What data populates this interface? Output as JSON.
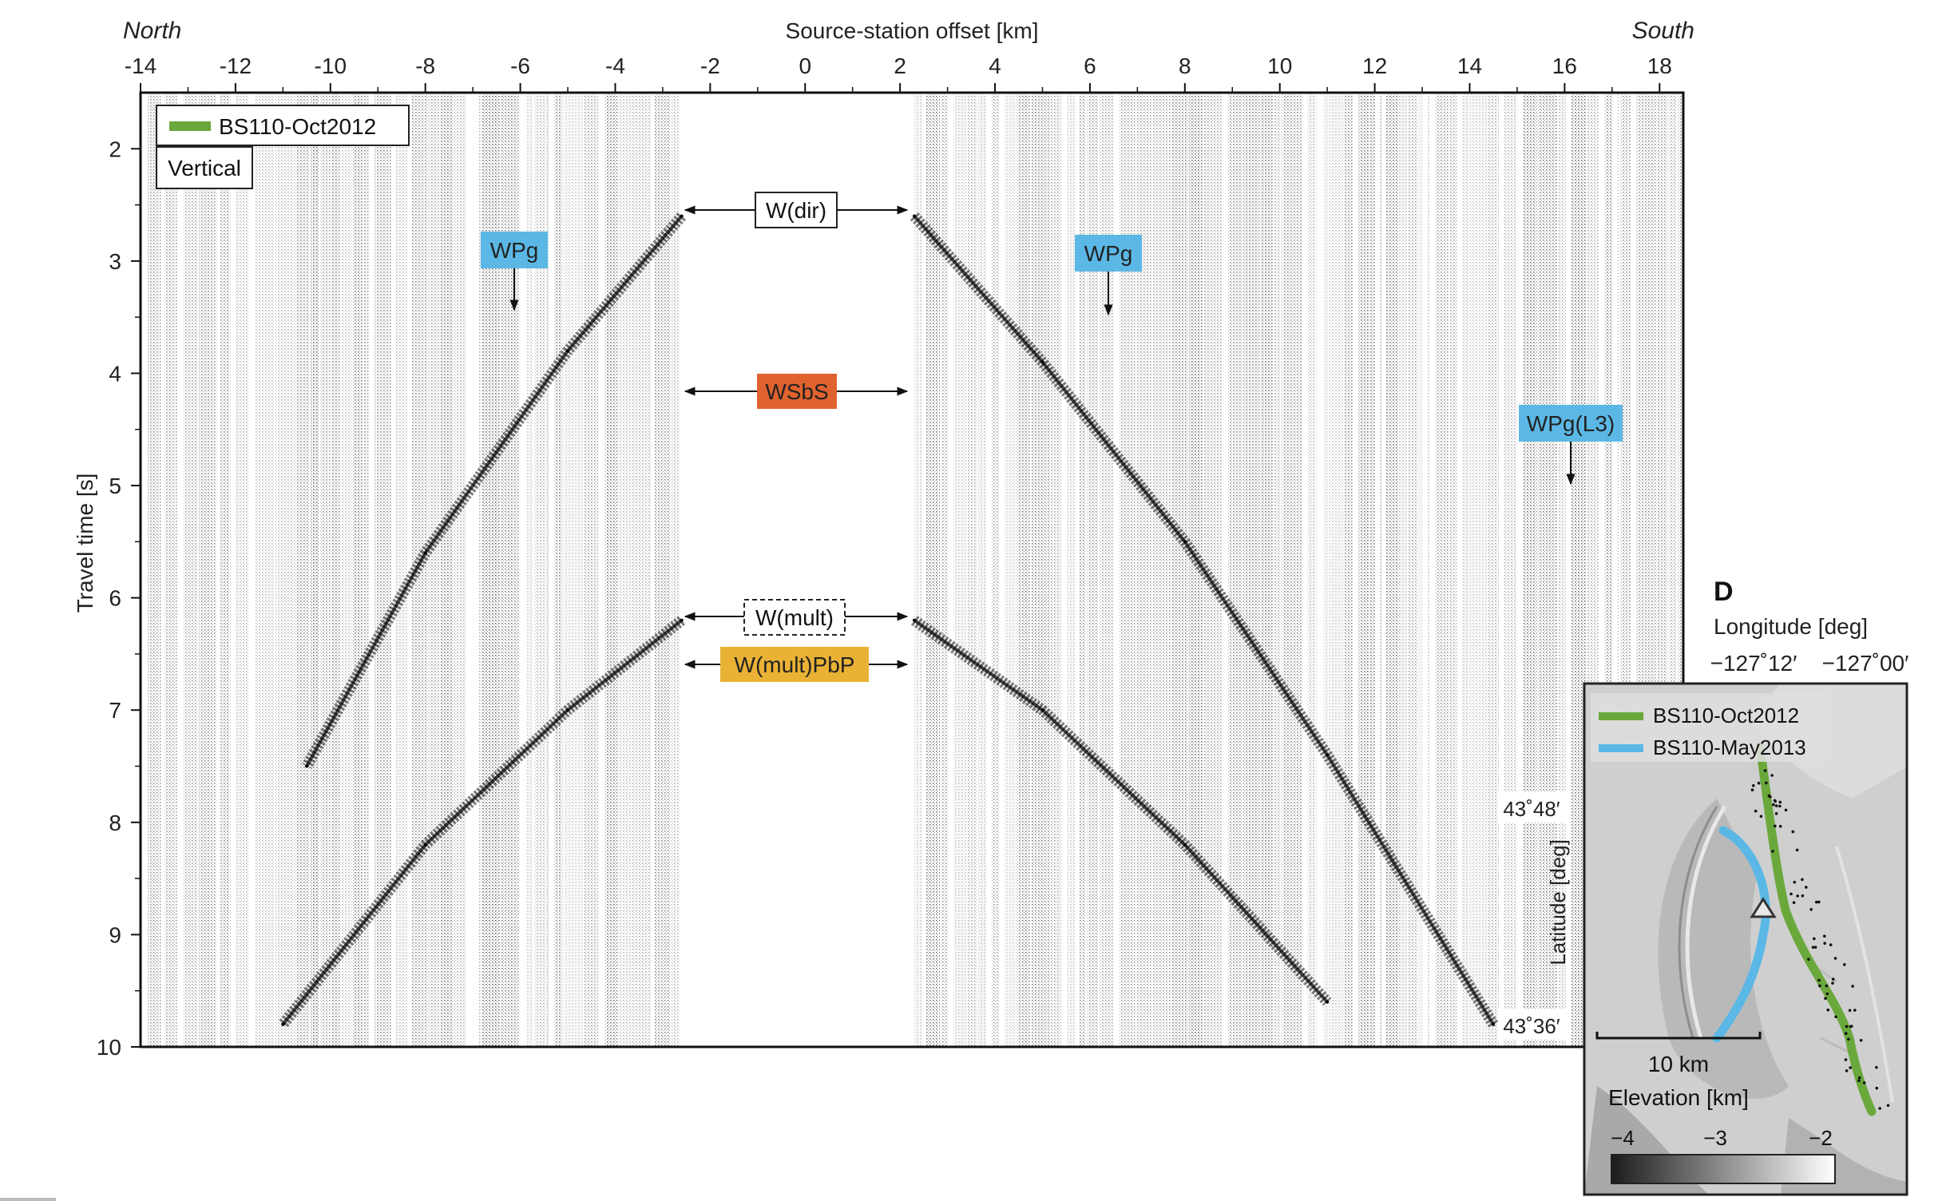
{
  "record_section": {
    "north_label": "North",
    "south_label": "South",
    "x_axis_title": "Source-station offset [km]",
    "y_axis_title": "Travel time [s]",
    "x_ticks": [
      "-14",
      "-12",
      "-10",
      "-8",
      "-6",
      "-4",
      "-2",
      "0",
      "2",
      "4",
      "6",
      "8",
      "10",
      "12",
      "14",
      "16",
      "18"
    ],
    "y_ticks": [
      "2",
      "3",
      "4",
      "5",
      "6",
      "7",
      "8",
      "9",
      "10"
    ],
    "legend_label": "BS110-Oct2012",
    "legend_color": "#6aa83c",
    "component_label": "Vertical",
    "annotations": {
      "wdir": "W(dir)",
      "wsbs": "WSbS",
      "wmult": "W(mult)",
      "wmultpbp": "W(mult)PbP",
      "wpg_left": "WPg",
      "wpg_right": "WPg",
      "wpg_l3": "WPg(L3)"
    },
    "colors": {
      "wpg": "#5bb8e6",
      "wsbs": "#e0622e",
      "wmultpbp": "#e9b234"
    }
  },
  "panel_d": {
    "letter": "D",
    "longitude_title": "Longitude [deg]",
    "lon_ticks": [
      "−127˚12′",
      "−127˚00′"
    ],
    "latitude_title": "Latitude [deg]",
    "lat_ticks": [
      "43˚48′",
      "43˚36′"
    ],
    "legend": [
      {
        "label": "BS110-Oct2012",
        "color": "#6aa83c"
      },
      {
        "label": "BS110-May2013",
        "color": "#5bb8e6"
      }
    ],
    "scale_label": "10 km",
    "elevation_title": "Elevation [km]",
    "elevation_ticks": [
      "−4",
      "−3",
      "−2"
    ]
  },
  "chart_data": {
    "type": "scatter",
    "title": "",
    "xlabel": "Source-station offset [km]",
    "ylabel": "Travel time [s]",
    "xlim": [
      -14,
      18.5
    ],
    "ylim": [
      10,
      1.5
    ],
    "grid": false,
    "legend": "top-left",
    "series": [
      {
        "name": "W(dir)",
        "points": [
          [
            -2.6,
            2.6
          ],
          [
            -5,
            3.8
          ],
          [
            -8,
            5.6
          ],
          [
            -10.5,
            7.5
          ],
          [
            2.3,
            2.6
          ],
          [
            5,
            3.9
          ],
          [
            8,
            5.5
          ],
          [
            11,
            7.4
          ],
          [
            14.5,
            9.8
          ]
        ]
      },
      {
        "name": "W(mult)",
        "points": [
          [
            -2.6,
            6.2
          ],
          [
            -5,
            7.0
          ],
          [
            -8,
            8.2
          ],
          [
            -11,
            9.8
          ],
          [
            2.3,
            6.2
          ],
          [
            5,
            7.0
          ],
          [
            8,
            8.2
          ],
          [
            11,
            9.6
          ]
        ]
      }
    ]
  }
}
